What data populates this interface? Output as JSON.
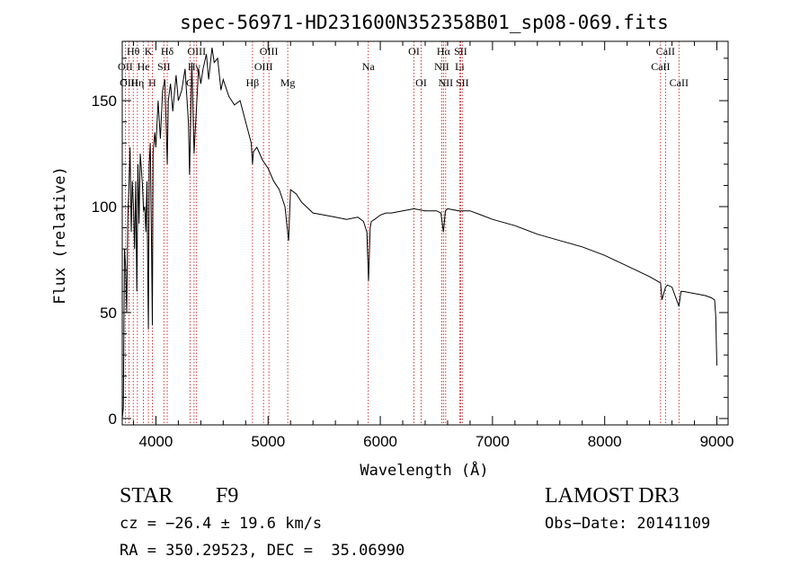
{
  "chart_data": {
    "type": "line",
    "title": "spec-56971-HD231600N352358B01_sp08-069.fits",
    "xlabel": "Wavelength (Å)",
    "ylabel": "Flux (relative)",
    "xlim": [
      3700,
      9100
    ],
    "ylim": [
      -3,
      178
    ],
    "x_ticks": [
      4000,
      5000,
      6000,
      7000,
      8000,
      9000
    ],
    "y_ticks": [
      0,
      50,
      100,
      150
    ],
    "grid": false,
    "series": [
      {
        "name": "flux",
        "x": [
          3700,
          3710,
          3720,
          3730,
          3740,
          3750,
          3760,
          3770,
          3780,
          3790,
          3800,
          3810,
          3820,
          3830,
          3840,
          3850,
          3860,
          3870,
          3880,
          3890,
          3900,
          3910,
          3920,
          3930,
          3933,
          3940,
          3950,
          3960,
          3968,
          3975,
          3990,
          4000,
          4020,
          4040,
          4060,
          4080,
          4101,
          4110,
          4130,
          4150,
          4180,
          4200,
          4230,
          4260,
          4290,
          4300,
          4320,
          4340,
          4350,
          4380,
          4400,
          4420,
          4450,
          4470,
          4500,
          4520,
          4550,
          4580,
          4600,
          4650,
          4700,
          4750,
          4800,
          4850,
          4861,
          4870,
          4900,
          4950,
          5000,
          5050,
          5100,
          5150,
          5170,
          5183,
          5200,
          5250,
          5300,
          5400,
          5500,
          5600,
          5700,
          5800,
          5850,
          5880,
          5895,
          5910,
          5920,
          5950,
          6000,
          6050,
          6100,
          6200,
          6300,
          6400,
          6500,
          6540,
          6563,
          6580,
          6600,
          6700,
          6800,
          6900,
          7000,
          7200,
          7400,
          7600,
          7800,
          8000,
          8200,
          8400,
          8498,
          8510,
          8542,
          8560,
          8600,
          8662,
          8680,
          8700,
          8800,
          8900,
          8950,
          8980,
          8990,
          8995,
          9000
        ],
        "values": [
          0,
          5,
          80,
          72,
          50,
          95,
          110,
          128,
          88,
          112,
          100,
          80,
          112,
          60,
          120,
          92,
          125,
          118,
          110,
          98,
          100,
          88,
          112,
          55,
          42,
          120,
          130,
          85,
          44,
          125,
          135,
          128,
          150,
          132,
          155,
          160,
          120,
          150,
          158,
          145,
          162,
          150,
          155,
          165,
          140,
          115,
          168,
          125,
          135,
          165,
          158,
          165,
          172,
          160,
          175,
          168,
          170,
          155,
          160,
          152,
          148,
          150,
          140,
          130,
          120,
          126,
          128,
          122,
          118,
          112,
          108,
          100,
          90,
          84,
          108,
          106,
          102,
          97,
          96,
          95,
          94,
          95,
          93,
          88,
          65,
          90,
          93,
          94,
          96,
          97,
          97,
          98,
          99,
          98,
          98,
          97,
          88,
          98,
          99,
          98,
          98,
          96,
          94,
          91,
          87,
          84,
          81,
          77,
          72,
          67,
          64,
          56,
          62,
          63,
          62,
          53,
          60,
          60,
          59,
          58,
          57,
          56,
          48,
          36,
          25
        ]
      }
    ],
    "line_markers": [
      {
        "label": "Hθ",
        "x": 3798,
        "row": 1
      },
      {
        "label": "OII",
        "x": 3727,
        "row": 2
      },
      {
        "label": "OIII",
        "x": 3760,
        "row": 3
      },
      {
        "label": "Hη",
        "x": 3835,
        "row": 3
      },
      {
        "label": "He",
        "x": 3889,
        "row": 2
      },
      {
        "label": "K",
        "x": 3933,
        "row": 1
      },
      {
        "label": "SII",
        "x": 4071,
        "row": 2
      },
      {
        "label": "H",
        "x": 3968,
        "row": 3
      },
      {
        "label": "Hδ",
        "x": 4101,
        "row": 1
      },
      {
        "label": "OIII",
        "x": 4363,
        "row": 1
      },
      {
        "label": "Hγ",
        "x": 4340,
        "row": 2
      },
      {
        "label": "G",
        "x": 4304,
        "row": 3
      },
      {
        "label": "OIII",
        "x": 5007,
        "row": 1
      },
      {
        "label": "OIII",
        "x": 4959,
        "row": 2
      },
      {
        "label": "Hβ",
        "x": 4861,
        "row": 3
      },
      {
        "label": "Mg",
        "x": 5175,
        "row": 3
      },
      {
        "label": "Na",
        "x": 5893,
        "row": 2
      },
      {
        "label": "OI",
        "x": 6300,
        "row": 1
      },
      {
        "label": "OI",
        "x": 6364,
        "row": 3
      },
      {
        "label": "Hα",
        "x": 6563,
        "row": 1
      },
      {
        "label": "SII",
        "x": 6716,
        "row": 1
      },
      {
        "label": "NII",
        "x": 6548,
        "row": 2
      },
      {
        "label": "Li",
        "x": 6708,
        "row": 2
      },
      {
        "label": "NII",
        "x": 6583,
        "row": 3
      },
      {
        "label": "SII",
        "x": 6731,
        "row": 3
      },
      {
        "label": "CaII",
        "x": 8542,
        "row": 1
      },
      {
        "label": "CaII",
        "x": 8498,
        "row": 2
      },
      {
        "label": "CaII",
        "x": 8662,
        "row": 3
      }
    ]
  },
  "info": {
    "object_class": "STAR",
    "subclass": "F9",
    "survey": "LAMOST DR3",
    "cz_line": "cz = −26.4 ± 19.6 km/s",
    "obs_date": "Obs−Date: 20141109",
    "coords": "RA = 350.29523, DEC =  35.06990"
  },
  "colors": {
    "axis": "#000000",
    "spectrum": "#000000",
    "marker_line": "#cc0000"
  }
}
